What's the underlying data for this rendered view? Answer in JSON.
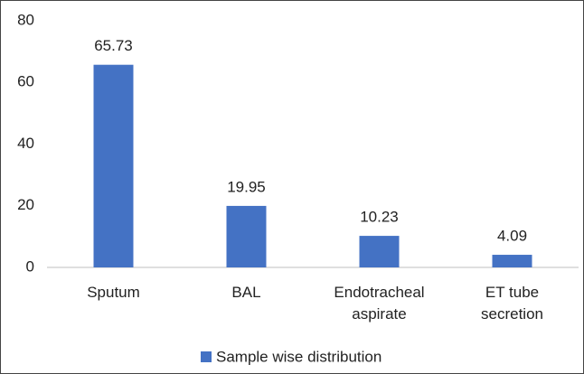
{
  "chart_data": {
    "type": "bar",
    "categories": [
      "Sputum",
      "BAL",
      "Endotracheal aspirate",
      "ET tube secretion"
    ],
    "series": [
      {
        "name": "Sample wise distribution",
        "color": "#4472c4",
        "values": [
          65.73,
          19.95,
          10.23,
          4.09
        ]
      }
    ],
    "ylim": [
      0,
      80
    ],
    "yticks": [
      0,
      20,
      40,
      60,
      80
    ],
    "grid": false
  }
}
